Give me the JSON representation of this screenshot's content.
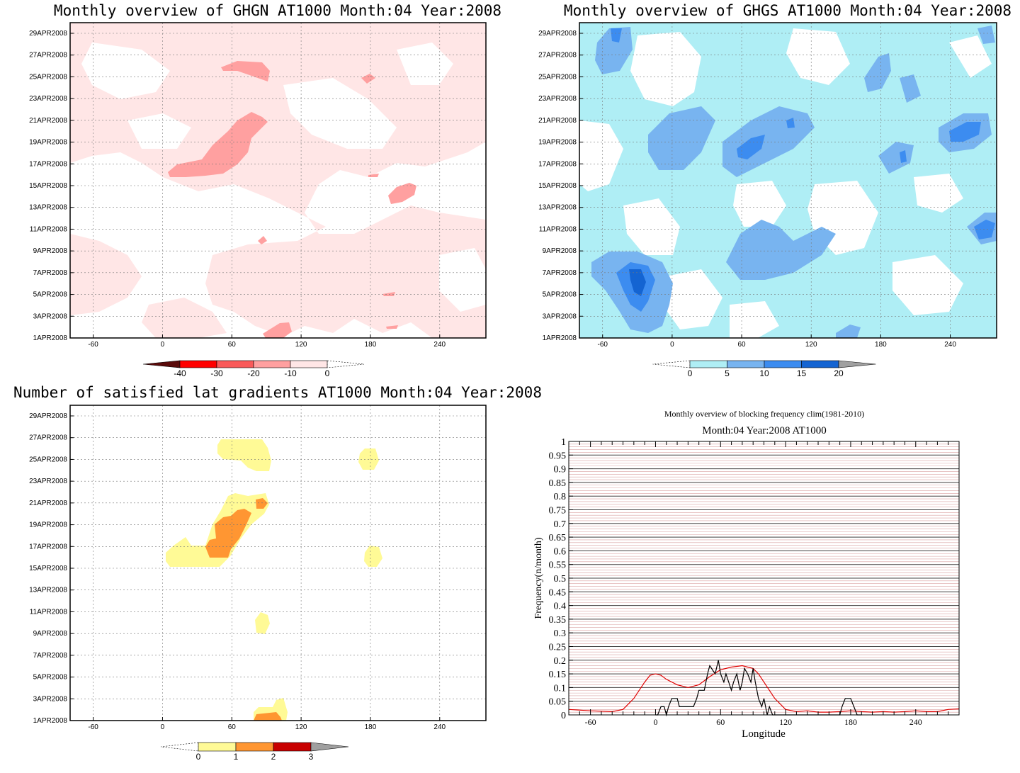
{
  "charts": [
    {
      "id": "ghgn",
      "title": "Monthly overview of GHGN AT1000 Month:04 Year:2008",
      "xticks": [
        -60,
        0,
        60,
        120,
        180,
        240
      ],
      "yticks": [
        "1APR2008",
        "3APR2008",
        "5APR2008",
        "7APR2008",
        "9APR2008",
        "11APR2008",
        "13APR2008",
        "15APR2008",
        "17APR2008",
        "19APR2008",
        "21APR2008",
        "23APR2008",
        "25APR2008",
        "27APR2008",
        "29APR2008"
      ],
      "colorbar": {
        "labels": [
          "-40",
          "-30",
          "-20",
          "-10",
          "0"
        ],
        "colors": [
          "#5a0a0a",
          "#ff0000",
          "#fa5a5a",
          "#ffa0a0",
          "#ffe6e6"
        ]
      }
    },
    {
      "id": "ghgs",
      "title": "Monthly overview of GHGS AT1000 Month:04 Year:2008",
      "xticks": [
        -60,
        0,
        60,
        120,
        180,
        240
      ],
      "yticks": [
        "1APR2008",
        "3APR2008",
        "5APR2008",
        "7APR2008",
        "9APR2008",
        "11APR2008",
        "13APR2008",
        "15APR2008",
        "17APR2008",
        "19APR2008",
        "21APR2008",
        "23APR2008",
        "25APR2008",
        "27APR2008",
        "29APR2008"
      ],
      "colorbar": {
        "labels": [
          "0",
          "5",
          "10",
          "15",
          "20"
        ],
        "colors": [
          "#afeef5",
          "#78b4f0",
          "#3c8cf0",
          "#1464d2",
          "#a0a0a0"
        ]
      }
    },
    {
      "id": "nsat",
      "title": "Number of satisfied lat gradients AT1000 Month:04 Year:2008",
      "xticks": [
        -60,
        0,
        60,
        120,
        180,
        240
      ],
      "yticks": [
        "1APR2008",
        "3APR2008",
        "5APR2008",
        "7APR2008",
        "9APR2008",
        "11APR2008",
        "13APR2008",
        "15APR2008",
        "17APR2008",
        "19APR2008",
        "21APR2008",
        "23APR2008",
        "25APR2008",
        "27APR2008",
        "29APR2008"
      ],
      "colorbar": {
        "labels": [
          "0",
          "1",
          "2",
          "3"
        ],
        "colors": [
          "#fffa96",
          "#ff9632",
          "#c80000",
          "#a0a0a0"
        ]
      }
    }
  ],
  "chart_data": {
    "type": "line",
    "title": "Monthly overview of blocking frequency clim(1981-2010)",
    "subtitle": "Month:04 Year:2008  AT1000",
    "xlabel": "Longitude",
    "ylabel": "Frequency(n/month)",
    "xlim": [
      -80,
      280
    ],
    "ylim": [
      0,
      1
    ],
    "xticks": [
      -60,
      0,
      60,
      120,
      180,
      240
    ],
    "yticks": [
      "0",
      "0.05",
      "0.1",
      "0.15",
      "0.2",
      "0.25",
      "0.3",
      "0.35",
      "0.4",
      "0.45",
      "0.5",
      "0.55",
      "0.6",
      "0.65",
      "0.7",
      "0.75",
      "0.8",
      "0.85",
      "0.9",
      "0.95",
      "1"
    ],
    "grid": true,
    "series": [
      {
        "color": "#e00000",
        "x": [
          -80,
          -60,
          -40,
          -30,
          -20,
          -10,
          -5,
          0,
          5,
          10,
          20,
          30,
          40,
          50,
          60,
          70,
          80,
          85,
          90,
          95,
          100,
          105,
          110,
          115,
          120,
          130,
          140,
          150,
          160,
          170,
          180,
          190,
          200,
          210,
          220,
          230,
          240,
          250,
          260,
          270,
          280
        ],
        "y": [
          0.02,
          0.015,
          0.012,
          0.02,
          0.06,
          0.12,
          0.145,
          0.15,
          0.145,
          0.13,
          0.11,
          0.1,
          0.11,
          0.14,
          0.165,
          0.175,
          0.18,
          0.175,
          0.17,
          0.15,
          0.12,
          0.09,
          0.06,
          0.04,
          0.02,
          0.012,
          0.015,
          0.01,
          0.01,
          0.012,
          0.015,
          0.012,
          0.01,
          0.012,
          0.01,
          0.012,
          0.015,
          0.012,
          0.012,
          0.02,
          0.022
        ]
      },
      {
        "color": "#000000",
        "x": [
          0,
          2,
          5,
          8,
          10,
          12,
          15,
          20,
          22,
          25,
          30,
          35,
          38,
          40,
          45,
          48,
          50,
          55,
          58,
          60,
          63,
          65,
          70,
          72,
          75,
          78,
          80,
          82,
          85,
          88,
          90,
          92,
          95,
          98,
          100,
          103,
          105,
          108,
          170,
          172,
          175,
          180,
          183,
          186,
          190
        ],
        "y": [
          0,
          0,
          0.03,
          0.03,
          0,
          0.03,
          0.06,
          0.06,
          0.03,
          0.03,
          0.03,
          0.03,
          0.06,
          0.09,
          0.09,
          0.15,
          0.18,
          0.15,
          0.2,
          0.15,
          0.12,
          0.15,
          0.09,
          0.12,
          0.15,
          0.09,
          0.12,
          0.17,
          0.15,
          0.12,
          0.17,
          0.12,
          0.06,
          0.03,
          0.06,
          0,
          0.03,
          0,
          0,
          0.03,
          0.06,
          0.06,
          0.03,
          0,
          0
        ]
      }
    ]
  }
}
